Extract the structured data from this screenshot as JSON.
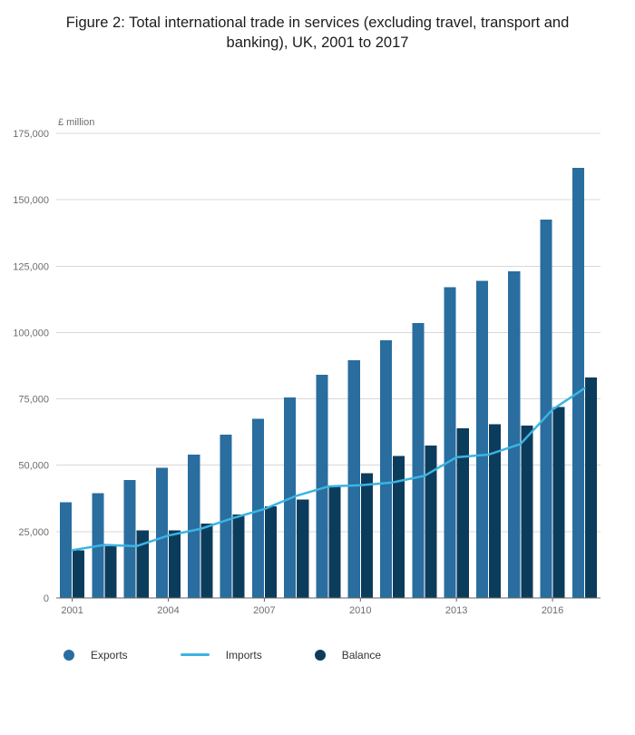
{
  "chart_data": {
    "type": "bar",
    "title": "Figure 2: Total international trade in services (excluding travel, transport and banking), UK, 2001 to 2017",
    "unit_label": "£ million",
    "years": [
      2001,
      2002,
      2003,
      2004,
      2005,
      2006,
      2007,
      2008,
      2009,
      2010,
      2011,
      2012,
      2013,
      2014,
      2015,
      2016,
      2017
    ],
    "x_tick_labels": [
      "2001",
      "2004",
      "2007",
      "2010",
      "2013",
      "2016"
    ],
    "ylim": [
      0,
      175000
    ],
    "ytick_values": [
      0,
      25000,
      50000,
      75000,
      100000,
      125000,
      150000,
      175000
    ],
    "ytick_labels": [
      "0",
      "25,000",
      "50,000",
      "75,000",
      "100,000",
      "125,000",
      "150,000",
      "175,000"
    ],
    "grid": true,
    "legend_position": "bottom",
    "series": [
      {
        "name": "Exports",
        "type": "bar",
        "color": "#2a6d9f",
        "values": [
          36000,
          39500,
          44500,
          49000,
          54000,
          61500,
          67500,
          75500,
          84000,
          89500,
          97000,
          103500,
          117000,
          119500,
          123000,
          142500,
          162000
        ]
      },
      {
        "name": "Imports",
        "type": "line",
        "color": "#3bb4e3",
        "values": [
          18000,
          20000,
          19500,
          23500,
          26000,
          30000,
          33500,
          38500,
          42000,
          42500,
          43500,
          46000,
          53000,
          54000,
          58000,
          71000,
          79000
        ]
      },
      {
        "name": "Balance",
        "type": "bar",
        "color": "#0c3c5c",
        "values": [
          18000,
          19500,
          25500,
          25500,
          28000,
          31500,
          34500,
          37000,
          42000,
          47000,
          53500,
          57500,
          64000,
          65500,
          65000,
          72000,
          83000
        ]
      }
    ],
    "legend": [
      {
        "label": "Exports",
        "marker": "circle",
        "color": "#2a6d9f"
      },
      {
        "label": "Imports",
        "marker": "line",
        "color": "#3bb4e3"
      },
      {
        "label": "Balance",
        "marker": "circle",
        "color": "#0c3c5c"
      }
    ],
    "axis_color": "#666666",
    "grid_color": "#d8d8d8",
    "tick_label_color": "#6e6e6e",
    "title_color": "#1c1c1c"
  }
}
